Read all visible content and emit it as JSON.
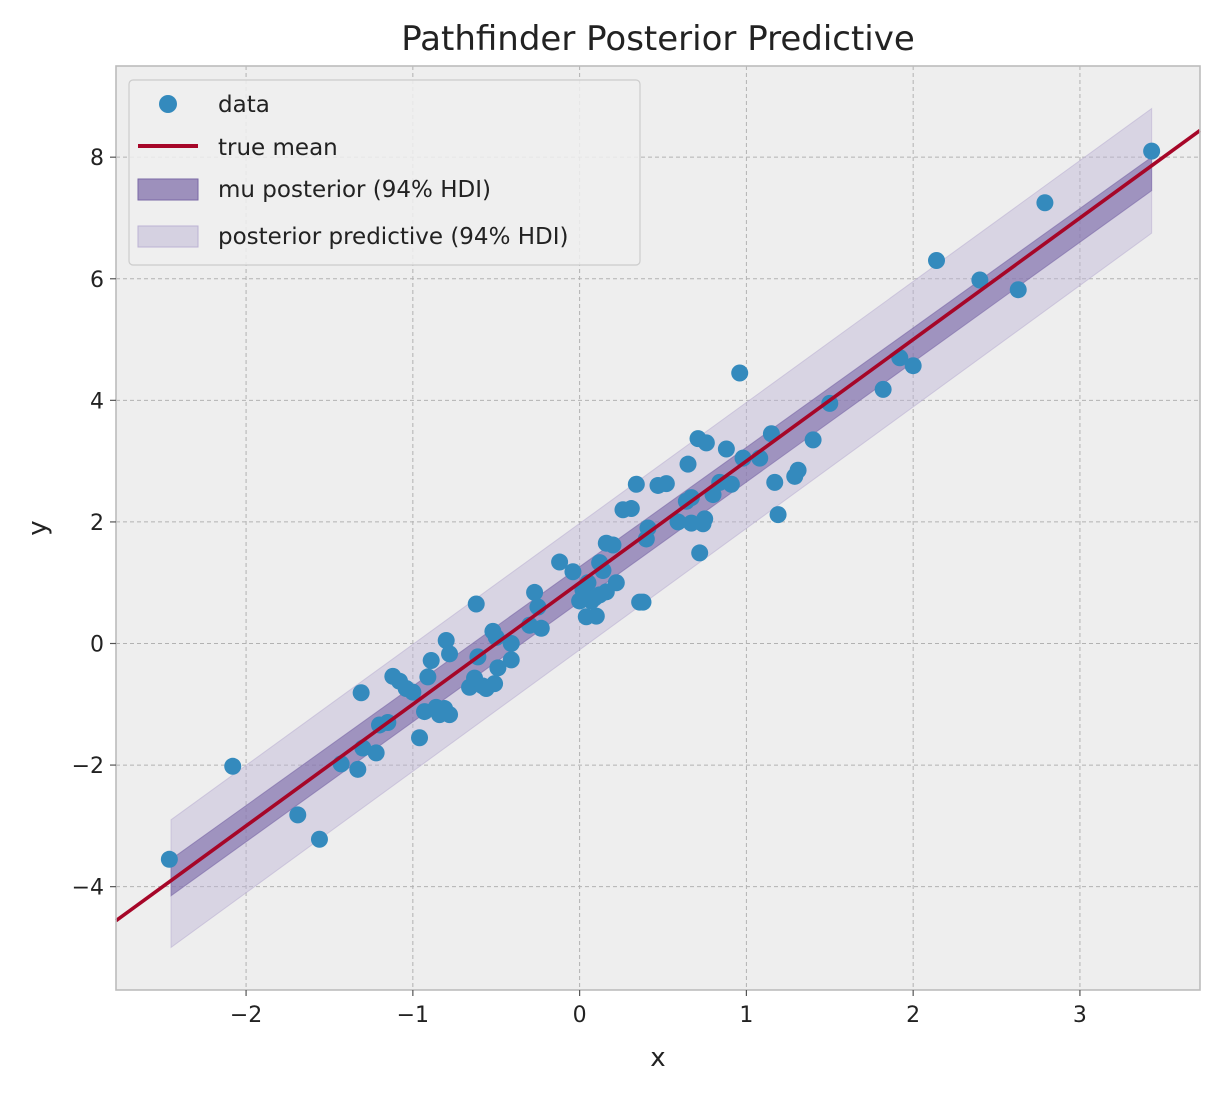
{
  "chart_data": {
    "type": "scatter",
    "title": "Pathfinder Posterior Predictive",
    "xlabel": "x",
    "ylabel": "y",
    "xlim": [
      -2.78,
      3.72
    ],
    "ylim": [
      -5.7,
      9.5
    ],
    "grid": true,
    "legend_position": "top-left",
    "x_ticks": [
      -2,
      -1,
      0,
      1,
      2,
      3
    ],
    "x_tick_labels": [
      "−2",
      "−1",
      "0",
      "1",
      "2",
      "3"
    ],
    "y_ticks": [
      -4,
      -2,
      0,
      2,
      4,
      6,
      8
    ],
    "y_tick_labels": [
      "−4",
      "−2",
      "0",
      "2",
      "4",
      "6",
      "8"
    ],
    "colors": {
      "data": "#348abd",
      "true_mean": "#a60628",
      "mu_band": "#7a68a6",
      "pp_band": "#bcb3d4",
      "plot_background": "#eeeeee",
      "grid": "#b2b2b2"
    },
    "legend": [
      {
        "key": "data",
        "label": "data"
      },
      {
        "key": "true_mean",
        "label": "true mean"
      },
      {
        "key": "mu_band",
        "label": "mu posterior (94% HDI)"
      },
      {
        "key": "pp_band",
        "label": "posterior predictive (94% HDI)"
      }
    ],
    "true_mean": {
      "intercept": 1.0,
      "slope": 2.0
    },
    "mu_posterior_hdi": {
      "x": [
        -2.45,
        3.43
      ],
      "lower": [
        -4.15,
        7.45
      ],
      "upper": [
        -3.55,
        8.0
      ]
    },
    "posterior_predictive_hdi": {
      "x": [
        -2.45,
        3.43
      ],
      "lower": [
        -5.0,
        6.75
      ],
      "upper": [
        -2.9,
        8.8
      ]
    },
    "series": [
      {
        "name": "data",
        "points": [
          [
            -2.46,
            -3.55
          ],
          [
            -2.08,
            -2.02
          ],
          [
            -1.69,
            -2.82
          ],
          [
            -1.56,
            -3.22
          ],
          [
            -1.43,
            -1.98
          ],
          [
            -1.33,
            -2.07
          ],
          [
            -1.31,
            -0.81
          ],
          [
            -1.3,
            -1.72
          ],
          [
            -1.22,
            -1.8
          ],
          [
            -1.2,
            -1.34
          ],
          [
            -1.15,
            -1.3
          ],
          [
            -1.12,
            -0.54
          ],
          [
            -1.08,
            -0.62
          ],
          [
            -1.04,
            -0.74
          ],
          [
            -1.0,
            -0.8
          ],
          [
            -0.96,
            -1.55
          ],
          [
            -0.93,
            -1.12
          ],
          [
            -0.91,
            -0.55
          ],
          [
            -0.89,
            -0.28
          ],
          [
            -0.86,
            -1.05
          ],
          [
            -0.84,
            -1.17
          ],
          [
            -0.81,
            -1.07
          ],
          [
            -0.8,
            0.05
          ],
          [
            -0.78,
            -1.17
          ],
          [
            -0.78,
            -0.17
          ],
          [
            -0.66,
            -0.72
          ],
          [
            -0.63,
            -0.57
          ],
          [
            -0.62,
            0.65
          ],
          [
            -0.61,
            -0.22
          ],
          [
            -0.58,
            -0.7
          ],
          [
            -0.56,
            -0.74
          ],
          [
            -0.52,
            0.2
          ],
          [
            -0.51,
            -0.66
          ],
          [
            -0.5,
            0.1
          ],
          [
            -0.49,
            -0.4
          ],
          [
            -0.41,
            -0.27
          ],
          [
            -0.41,
            0.0
          ],
          [
            -0.3,
            0.3
          ],
          [
            -0.27,
            0.84
          ],
          [
            -0.25,
            0.6
          ],
          [
            -0.23,
            0.25
          ],
          [
            -0.12,
            1.34
          ],
          [
            -0.04,
            1.18
          ],
          [
            0.0,
            0.7
          ],
          [
            0.02,
            0.88
          ],
          [
            0.04,
            0.44
          ],
          [
            0.05,
            1.0
          ],
          [
            0.07,
            0.7
          ],
          [
            0.09,
            0.75
          ],
          [
            0.1,
            0.45
          ],
          [
            0.12,
            0.8
          ],
          [
            0.12,
            1.33
          ],
          [
            0.14,
            1.2
          ],
          [
            0.16,
            1.65
          ],
          [
            0.16,
            0.85
          ],
          [
            0.2,
            1.62
          ],
          [
            0.22,
            1.0
          ],
          [
            0.26,
            2.2
          ],
          [
            0.31,
            2.22
          ],
          [
            0.34,
            2.62
          ],
          [
            0.36,
            0.68
          ],
          [
            0.38,
            0.68
          ],
          [
            0.4,
            1.72
          ],
          [
            0.41,
            1.9
          ],
          [
            0.47,
            2.6
          ],
          [
            0.52,
            2.63
          ],
          [
            0.59,
            2.0
          ],
          [
            0.64,
            2.34
          ],
          [
            0.65,
            2.95
          ],
          [
            0.67,
            2.4
          ],
          [
            0.67,
            1.98
          ],
          [
            0.71,
            3.37
          ],
          [
            0.72,
            1.49
          ],
          [
            0.74,
            1.97
          ],
          [
            0.75,
            2.05
          ],
          [
            0.76,
            3.3
          ],
          [
            0.8,
            2.45
          ],
          [
            0.84,
            2.65
          ],
          [
            0.88,
            3.2
          ],
          [
            0.91,
            2.62
          ],
          [
            0.96,
            4.45
          ],
          [
            0.98,
            3.05
          ],
          [
            1.08,
            3.05
          ],
          [
            1.15,
            3.45
          ],
          [
            1.17,
            2.65
          ],
          [
            1.19,
            2.12
          ],
          [
            1.29,
            2.75
          ],
          [
            1.31,
            2.85
          ],
          [
            1.4,
            3.35
          ],
          [
            1.5,
            3.95
          ],
          [
            1.82,
            4.18
          ],
          [
            1.92,
            4.7
          ],
          [
            2.0,
            4.57
          ],
          [
            2.14,
            6.3
          ],
          [
            2.4,
            5.98
          ],
          [
            2.63,
            5.82
          ],
          [
            2.79,
            7.25
          ],
          [
            3.43,
            8.1
          ]
        ]
      }
    ]
  }
}
